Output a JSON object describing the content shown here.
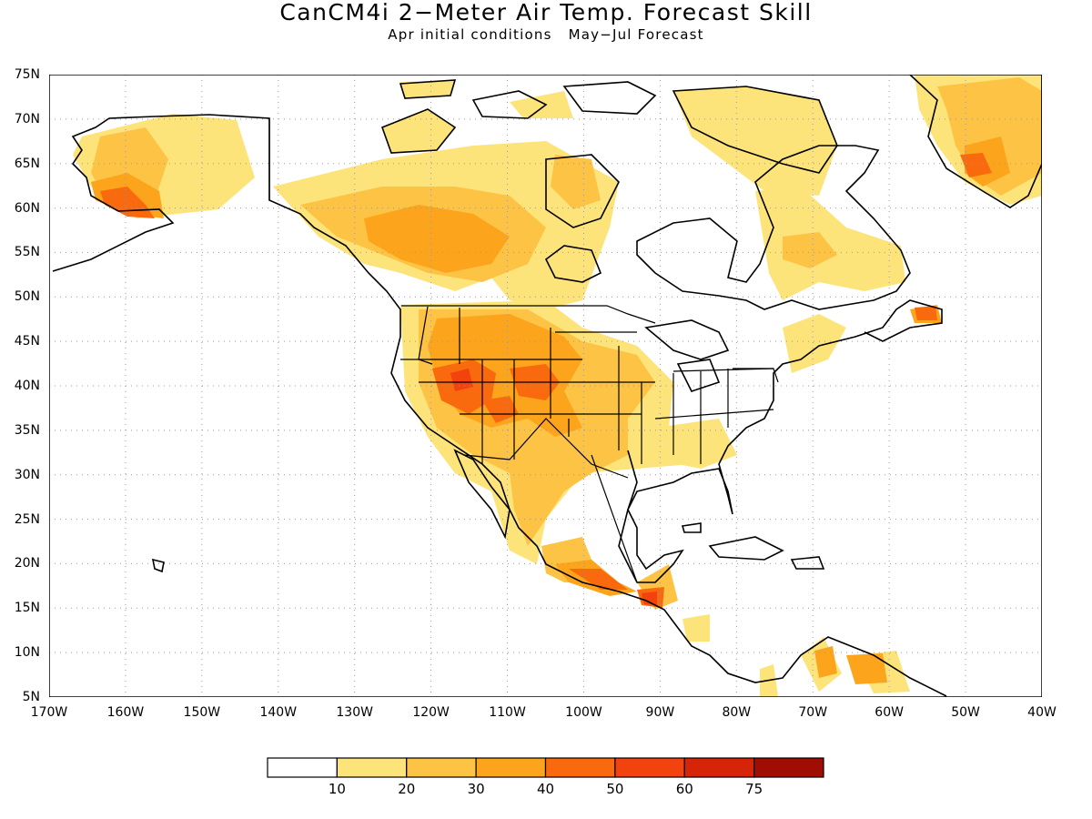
{
  "title": "CanCM4i 2−Meter Air Temp. Forecast Skill",
  "subtitle_left": "Apr initial conditions",
  "subtitle_right": "May−Jul Forecast",
  "map": {
    "lat_range": [
      5,
      75
    ],
    "lon_range": [
      -170,
      -40
    ],
    "lat_ticks": [
      "5N",
      "10N",
      "15N",
      "20N",
      "25N",
      "30N",
      "35N",
      "40N",
      "45N",
      "50N",
      "55N",
      "60N",
      "65N",
      "70N",
      "75N"
    ],
    "lon_ticks": [
      "170W",
      "160W",
      "150W",
      "140W",
      "130W",
      "120W",
      "110W",
      "100W",
      "90W",
      "80W",
      "70W",
      "60W",
      "50W",
      "40W"
    ],
    "grid": "dotted",
    "land_outline_color": "#000000"
  },
  "colorbar": {
    "labels": [
      "10",
      "20",
      "30",
      "40",
      "50",
      "60",
      "75"
    ],
    "colors": [
      "#ffffff",
      "#fde47a",
      "#fdc345",
      "#fca41c",
      "#f96a0f",
      "#f2420d",
      "#d62408",
      "#a00d03"
    ]
  }
}
